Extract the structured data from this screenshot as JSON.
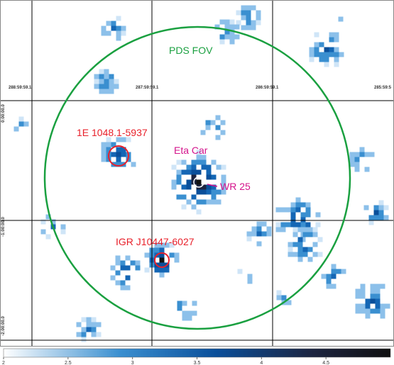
{
  "labels": {
    "fov": "PDS FOV",
    "source1": "1E 1048.1-5937",
    "source2": "Eta Car",
    "source3": "WR 25",
    "source4": "IGR J10447-6027"
  },
  "coordinates": {
    "ra": [
      "288:59:59.1",
      "287:59:59.1",
      "286:59:59.1",
      "285:59:5"
    ],
    "dec": [
      "0:00:00.0",
      "-1:00:00.0",
      "-2:00:00.0"
    ]
  },
  "colorbar": {
    "lim": [
      2,
      5
    ],
    "ticks": [
      2,
      2.5,
      3,
      3.5,
      4,
      4.5
    ]
  }
}
